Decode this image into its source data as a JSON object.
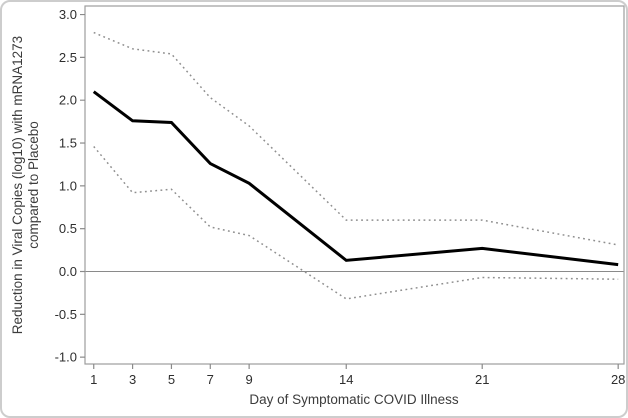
{
  "chart_data": {
    "type": "line",
    "title": "",
    "xlabel": "Day of Symptomatic COVID Illness",
    "ylabel_lines": [
      "Reduction in Viral Copies (log10) with mRNA1273",
      "compared to Placebo"
    ],
    "x": [
      1,
      3,
      5,
      7,
      9,
      14,
      21,
      28
    ],
    "x_ticks": [
      1,
      3,
      5,
      7,
      9,
      14,
      21,
      28
    ],
    "y_ticks": [
      3.0,
      2.5,
      2.0,
      1.5,
      1.0,
      0.5,
      0.0,
      -0.5,
      -1.0
    ],
    "xlim": [
      0.55,
      28.3
    ],
    "ylim": [
      -1.08,
      3.1
    ],
    "grid": false,
    "legend": "none",
    "reference_line_y": 0,
    "series": [
      {
        "name": "point-estimate",
        "style": "solid",
        "color": "#000000",
        "width": 3,
        "values": [
          2.1,
          1.76,
          1.74,
          1.26,
          1.03,
          0.13,
          0.27,
          0.08
        ]
      },
      {
        "name": "upper-confidence-limit",
        "style": "dotted",
        "color": "#8f8f8f",
        "width": 1.5,
        "values": [
          2.79,
          2.6,
          2.54,
          2.03,
          1.7,
          0.6,
          0.6,
          0.31
        ]
      },
      {
        "name": "lower-confidence-limit",
        "style": "dotted",
        "color": "#8f8f8f",
        "width": 1.5,
        "values": [
          1.46,
          0.92,
          0.96,
          0.52,
          0.42,
          -0.32,
          -0.07,
          -0.09
        ]
      }
    ],
    "colors": {
      "frame": "#9d9d9d",
      "tick": "#8a8a8a",
      "reference_line": "#8a8a8a",
      "background": "#ffffff"
    }
  }
}
